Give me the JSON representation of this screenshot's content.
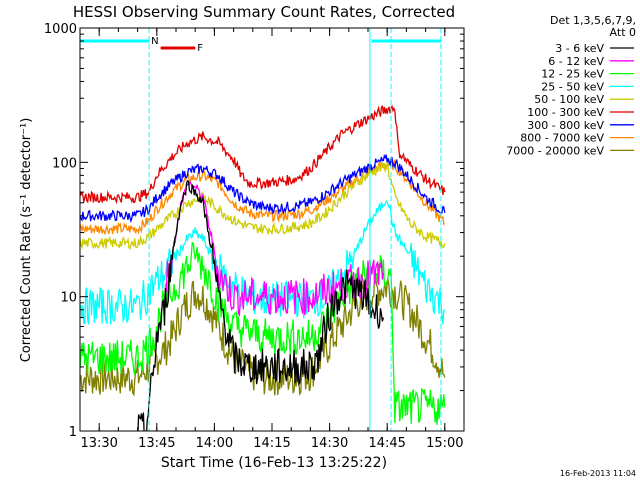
{
  "chart_data": {
    "type": "line",
    "title": "HESSI Observing Summary Count Rates, Corrected",
    "xlabel": "Start Time (16-Feb-13 13:25:22)",
    "ylabel": "Corrected Count Rate (s⁻¹ detector⁻¹)",
    "yscale": "log",
    "ylim": [
      1,
      1000
    ],
    "xlim_minutes": [
      13.5,
      13.55,
      15.07
    ],
    "x_range_minutes_since_1325": [
      0,
      100
    ],
    "x_ticks": [
      "13:30",
      "13:45",
      "14:00",
      "14:15",
      "14:30",
      "14:45",
      "15:00"
    ],
    "x_ticks_minutes_since_1325": [
      5,
      20,
      35,
      50,
      65,
      80,
      95
    ],
    "y_ticks": [
      "1",
      "10",
      "100",
      "1000"
    ],
    "y_tick_values": [
      1,
      10,
      100,
      1000
    ],
    "legend_header": [
      "Det 1,3,5,6,7,9,",
      "Att 0"
    ],
    "legend_position": "right",
    "timestamp": "16-Feb-2013 11:04",
    "flags": [
      {
        "label": "N",
        "color": "#00ffff",
        "start": 0,
        "end": 18,
        "level": "top"
      },
      {
        "label": "F",
        "color": "#e00000",
        "start": 21,
        "end": 30,
        "level": "below"
      },
      {
        "label": "",
        "color": "#00ffff",
        "start": 76,
        "end": 94,
        "level": "top"
      }
    ],
    "vlines": [
      {
        "x": 18,
        "color": "#00ffff",
        "dashed": true
      },
      {
        "x": 75.5,
        "color": "#00ffff",
        "dashed": false
      },
      {
        "x": 81,
        "color": "#00ffff",
        "dashed": true
      },
      {
        "x": 94,
        "color": "#00ffff",
        "dashed": true
      }
    ],
    "series": [
      {
        "name": "3 - 6 keV",
        "color": "#000000",
        "x": [
          15,
          17,
          19,
          20,
          22,
          24,
          26,
          28,
          30,
          32,
          34,
          36,
          38,
          40,
          44,
          48,
          52,
          56,
          60,
          62,
          64,
          66,
          68,
          70,
          72,
          74,
          76,
          78,
          79
        ],
        "y": [
          1,
          1,
          2.5,
          5,
          8,
          20,
          45,
          70,
          60,
          50,
          25,
          10,
          6,
          3.5,
          3,
          3,
          3,
          3,
          3,
          3.5,
          6,
          9,
          11,
          12,
          11,
          10,
          8,
          8,
          7
        ]
      },
      {
        "name": "6 - 12 keV",
        "color": "#ff00ff",
        "x": [
          22,
          24,
          26,
          28,
          30,
          32,
          34,
          36,
          40,
          44,
          48,
          52,
          56,
          60,
          64,
          68,
          72,
          76,
          79
        ],
        "y": [
          12,
          20,
          45,
          70,
          65,
          55,
          30,
          15,
          10,
          10,
          10,
          10,
          10,
          10,
          11,
          12,
          13,
          14,
          15
        ]
      },
      {
        "name": "12 - 25 keV",
        "color": "#00ff00",
        "x": [
          0,
          5,
          10,
          15,
          17,
          19,
          22,
          25,
          28,
          30,
          32,
          34,
          36,
          40,
          44,
          48,
          52,
          56,
          60,
          64,
          68,
          72,
          76,
          79,
          81,
          82,
          83,
          90,
          95
        ],
        "y": [
          3.5,
          3.5,
          3.5,
          3.5,
          4,
          5,
          9,
          12,
          17,
          20,
          17,
          13,
          9,
          6,
          5.5,
          5,
          5,
          5,
          5,
          6.5,
          10,
          13,
          15,
          15,
          14,
          1.5,
          1.5,
          1.5,
          1.5
        ]
      },
      {
        "name": "25 - 50 keV",
        "color": "#00ffff",
        "x": [
          0,
          5,
          10,
          15,
          17,
          19,
          22,
          25,
          28,
          30,
          32,
          34,
          36,
          40,
          44,
          48,
          52,
          56,
          60,
          64,
          68,
          72,
          74,
          76,
          78,
          80,
          82,
          86,
          90,
          94,
          95
        ],
        "y": [
          8.5,
          8.5,
          8.5,
          8.5,
          10,
          12,
          15,
          20,
          27,
          30,
          27,
          21,
          16,
          12,
          10,
          9.5,
          9.5,
          9.5,
          9.5,
          10,
          14,
          22,
          30,
          38,
          45,
          55,
          30,
          20,
          12,
          9,
          8
        ]
      },
      {
        "name": "50 - 100 keV",
        "color": "#cccc00",
        "x": [
          0,
          5,
          10,
          15,
          18,
          20,
          24,
          28,
          32,
          36,
          40,
          44,
          48,
          52,
          56,
          60,
          64,
          68,
          72,
          76,
          80,
          82,
          86,
          90,
          95
        ],
        "y": [
          25,
          25,
          25,
          25,
          28,
          32,
          40,
          50,
          55,
          45,
          37,
          33,
          32,
          32,
          33,
          35,
          42,
          55,
          70,
          85,
          95,
          55,
          35,
          28,
          25
        ]
      },
      {
        "name": "100 - 300 keV",
        "color": "#e00000",
        "x": [
          0,
          5,
          10,
          15,
          18,
          20,
          24,
          28,
          32,
          36,
          40,
          42,
          44,
          48,
          52,
          56,
          60,
          64,
          68,
          72,
          76,
          80,
          82,
          83,
          86,
          90,
          95
        ],
        "y": [
          55,
          55,
          55,
          55,
          60,
          80,
          110,
          140,
          155,
          140,
          105,
          80,
          70,
          70,
          72,
          75,
          90,
          120,
          160,
          190,
          220,
          250,
          255,
          120,
          95,
          75,
          60
        ]
      },
      {
        "name": "300 - 800 keV",
        "color": "#0000ff",
        "x": [
          0,
          5,
          10,
          15,
          18,
          20,
          24,
          28,
          32,
          36,
          40,
          44,
          48,
          52,
          56,
          60,
          64,
          68,
          72,
          76,
          80,
          82,
          86,
          90,
          95
        ],
        "y": [
          40,
          40,
          40,
          40,
          45,
          55,
          70,
          85,
          90,
          80,
          60,
          50,
          46,
          46,
          47,
          50,
          58,
          70,
          82,
          95,
          105,
          100,
          75,
          55,
          42
        ]
      },
      {
        "name": "800 - 7000 keV",
        "color": "#ff8800",
        "x": [
          0,
          5,
          10,
          15,
          18,
          20,
          24,
          28,
          32,
          36,
          40,
          44,
          48,
          52,
          56,
          60,
          64,
          68,
          72,
          76,
          80,
          82,
          86,
          90,
          95
        ],
        "y": [
          32,
          32,
          32,
          32,
          37,
          45,
          60,
          75,
          80,
          70,
          50,
          42,
          40,
          40,
          41,
          44,
          52,
          62,
          75,
          88,
          97,
          95,
          70,
          50,
          35
        ]
      },
      {
        "name": "7000 - 20000 keV",
        "color": "#808000",
        "x": [
          0,
          3,
          5,
          10,
          15,
          18,
          20,
          22,
          24,
          26,
          28,
          30,
          32,
          34,
          36,
          38,
          40,
          44,
          48,
          52,
          56,
          60,
          64,
          68,
          72,
          76,
          80,
          82,
          86,
          90,
          93,
          95
        ],
        "y": [
          2.5,
          2.5,
          2.5,
          2.5,
          2.5,
          3,
          3.5,
          4,
          5,
          7,
          9,
          11,
          10,
          8,
          6,
          4.5,
          3.5,
          2.7,
          2.5,
          2.5,
          2.5,
          2.7,
          4,
          6,
          9,
          11,
          12,
          11,
          8,
          5,
          3.5,
          2.5
        ]
      }
    ]
  }
}
